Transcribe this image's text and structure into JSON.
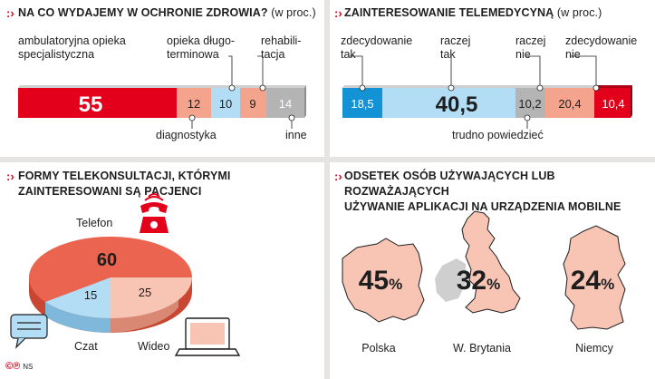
{
  "colors": {
    "red": "#e2001a",
    "salmon": "#f4a48d",
    "lightblue": "#b3dcf5",
    "grey": "#b4b4b4",
    "blue": "#1392d6",
    "pie_red": "#ea6450"
  },
  "panel1": {
    "title": "Na co wydajemy w ochronie zdrowia?",
    "unit": "(w proc.)",
    "label_top_1": "ambulatoryjna opieka",
    "label_top_2": "specjalistyczna",
    "label_top_3": "opieka długo-",
    "label_top_4": "terminowa",
    "label_top_5": "rehabili-",
    "label_top_6": "tacja",
    "label_bottom_1": "diagnostyka",
    "label_bottom_2": "inne",
    "values": [
      "55",
      "12",
      "10",
      "9",
      "14"
    ]
  },
  "panel2": {
    "title": "Zainteresowanie telemedycyną",
    "unit": "(w proc.)",
    "label_top_1": "zdecydowanie",
    "label_top_2": "tak",
    "label_top_3": "raczej",
    "label_top_4": "tak",
    "label_top_5": "raczej",
    "label_top_6": "nie",
    "label_top_7": "zdecydowanie",
    "label_top_8": "nie",
    "label_bottom": "trudno powiedzieć",
    "values": [
      "18,5",
      "40,5",
      "10,2",
      "20,4",
      "10,4"
    ]
  },
  "panel3": {
    "title_1": "Formy telekonsultacji, którymi",
    "title_2": "zainteresowani są pacjenci",
    "label_telefon": "Telefon",
    "label_czat": "Czat",
    "label_wideo": "Wideo",
    "values": [
      "60",
      "15",
      "25"
    ]
  },
  "panel4": {
    "title_1": "Odsetek osób używających lub rozważających",
    "title_2": "używanie aplikacji na urządzenia mobilne",
    "countries": [
      "Polska",
      "W. Brytania",
      "Niemcy"
    ],
    "values": [
      "45",
      "32",
      "24"
    ],
    "pct": "%"
  },
  "footer": {
    "symbols": "©℗",
    "credit": "NS"
  },
  "chart_data": [
    {
      "type": "bar",
      "title": "Na co wydajemy w ochronie zdrowia? (w proc.)",
      "categories": [
        "ambulatoryjna opieka specjalistyczna",
        "diagnostyka",
        "opieka długoterminowa",
        "rehabilitacja",
        "inne"
      ],
      "values": [
        55,
        12,
        10,
        9,
        14
      ]
    },
    {
      "type": "bar",
      "title": "Zainteresowanie telemedycyną (w proc.)",
      "categories": [
        "zdecydowanie tak",
        "raczej tak",
        "trudno powiedzieć",
        "raczej nie",
        "zdecydowanie nie"
      ],
      "values": [
        18.5,
        40.5,
        10.2,
        20.4,
        10.4
      ]
    },
    {
      "type": "pie",
      "title": "Formy telekonsultacji, którymi zainteresowani są pacjenci",
      "categories": [
        "Telefon",
        "Czat",
        "Wideo"
      ],
      "values": [
        60,
        15,
        25
      ]
    },
    {
      "type": "bar",
      "title": "Odsetek osób używających lub rozważających używanie aplikacji na urządzenia mobilne",
      "categories": [
        "Polska",
        "W. Brytania",
        "Niemcy"
      ],
      "values": [
        45,
        32,
        24
      ]
    }
  ]
}
